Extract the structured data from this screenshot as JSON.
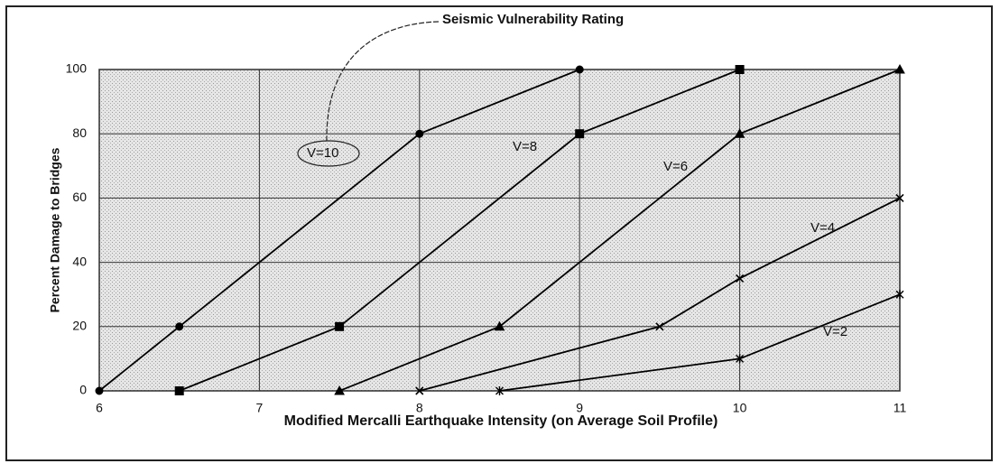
{
  "chart_data": {
    "type": "line",
    "annotation": "Seismic Vulnerability Rating",
    "xlabel": "Modified Mercalli Earthquake Intensity (on Average Soil Profile)",
    "ylabel": "Percent Damage to Bridges",
    "xlim": [
      6,
      11
    ],
    "xticks": [
      6,
      7,
      8,
      9,
      10,
      11
    ],
    "ylim": [
      0,
      100
    ],
    "yticks": [
      0,
      20,
      40,
      60,
      80,
      100
    ],
    "grid": true,
    "series": [
      {
        "name": "V=10",
        "color": "#000000",
        "marker": "circle",
        "x": [
          6,
          6.5,
          8,
          9
        ],
        "values": [
          0,
          20,
          80,
          100
        ]
      },
      {
        "name": "V=8",
        "color": "#000000",
        "marker": "square",
        "x": [
          6.5,
          7.5,
          9,
          10
        ],
        "values": [
          0,
          20,
          80,
          100
        ]
      },
      {
        "name": "V=6",
        "color": "#000000",
        "marker": "triangle",
        "x": [
          7.5,
          8.5,
          10,
          11
        ],
        "values": [
          0,
          20,
          80,
          100
        ]
      },
      {
        "name": "V=4",
        "color": "#000000",
        "marker": "x",
        "x": [
          8,
          9.5,
          10,
          11
        ],
        "values": [
          0,
          20,
          35,
          60
        ]
      },
      {
        "name": "V=2",
        "color": "#000000",
        "marker": "asterisk",
        "x": [
          8.5,
          10,
          11
        ],
        "values": [
          0,
          10,
          30
        ]
      }
    ]
  }
}
